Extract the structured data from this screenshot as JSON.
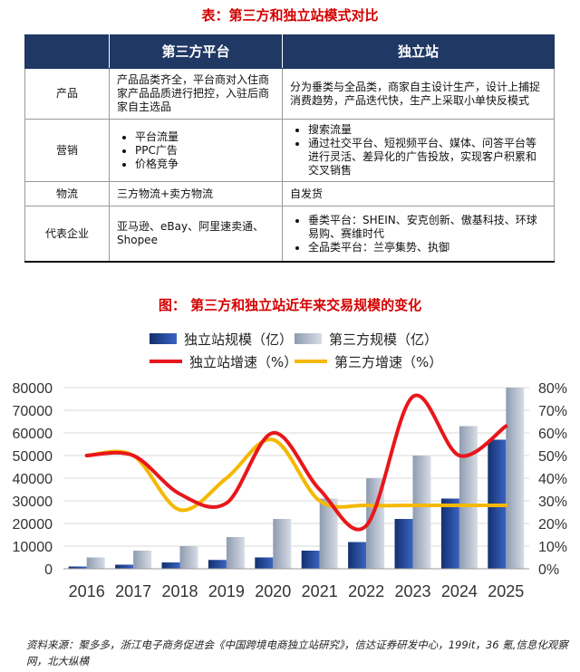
{
  "table": {
    "title": "表：第三方和独立站模式对比",
    "header": [
      "",
      "第三方平台",
      "独立站"
    ],
    "rows": [
      {
        "label": "产品",
        "third": "产品品类齐全，平台商对入住商家产品品质进行把控，入驻后商家自主选品",
        "indep": "分为垂类与全品类，商家自主设计生产，设计上捕捉消费趋势，产品迭代快，生产上采取小单快反模式"
      },
      {
        "label": "营销",
        "third_list": [
          "平台流量",
          "PPC广告",
          "价格竞争"
        ],
        "indep_list": [
          "搜索流量",
          "通过社交平台、短视频平台、媒体、问答平台等进行灵活、差异化的广告投放，实现客户积累和交叉销售"
        ]
      },
      {
        "label": "物流",
        "third": "三方物流+卖方物流",
        "indep": "自发货"
      },
      {
        "label": "代表企业",
        "third": "亚马逊、eBay、阿里速卖通、Shopee",
        "indep_list": [
          "垂类平台：SHEIN、安克创新、傲基科技、环球易购、赛维时代",
          "全品类平台：兰亭集势、执御"
        ]
      }
    ]
  },
  "chart_title": "图：  第三方和独立站近年来交易规模的变化",
  "chart_data": {
    "type": "bar",
    "categories": [
      "2016",
      "2017",
      "2018",
      "2019",
      "2020",
      "2021",
      "2022",
      "2023",
      "2024",
      "2025"
    ],
    "series": [
      {
        "name": "独立站规模（亿）",
        "kind": "bar",
        "axis": "left",
        "color": "#1f3e8f",
        "values": [
          1000,
          1800,
          2800,
          3900,
          5000,
          8000,
          11800,
          22000,
          31000,
          57000
        ]
      },
      {
        "name": "第三方规模（亿）",
        "kind": "bar",
        "axis": "left",
        "color": "#a9b4c4",
        "values": [
          5000,
          8000,
          10000,
          14000,
          22000,
          31000,
          40000,
          50000,
          63000,
          80000
        ]
      },
      {
        "name": "独立站增速（%）",
        "kind": "line",
        "axis": "right",
        "color": "#e8161a",
        "values": [
          50,
          50,
          33,
          29,
          60,
          35,
          19,
          76,
          50,
          63
        ]
      },
      {
        "name": "第三方增速（%）",
        "kind": "line",
        "axis": "right",
        "color": "#f5b800",
        "values": [
          50,
          50,
          26,
          40,
          57,
          30,
          28,
          28,
          28,
          28
        ]
      }
    ],
    "ylim_left": [
      0,
      80000
    ],
    "yticks_left": [
      "0",
      "10000",
      "20000",
      "30000",
      "40000",
      "50000",
      "60000",
      "70000",
      "80000"
    ],
    "ylim_right": [
      0,
      80
    ],
    "yticks_right": [
      "0%",
      "10%",
      "20%",
      "30%",
      "40%",
      "50%",
      "60%",
      "70%",
      "80%"
    ],
    "grid": true,
    "legend": "top"
  },
  "source": "资料来源：聚多多，浙江电子商务促进会《中国跨境电商独立站研究》，信达证券研发中心，199it，36 氪,信息化观察网，北大纵横"
}
